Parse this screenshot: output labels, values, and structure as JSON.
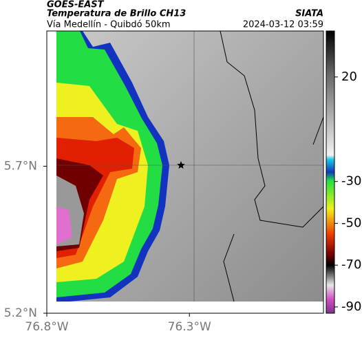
{
  "header": {
    "title": "GOES-EAST",
    "subtitle": "Temperatura de Brillo CH13",
    "location": "Vía Medellín - Quibdó 50km",
    "source": "SIATA",
    "datetime": "2024-03-12 03:59"
  },
  "map": {
    "xlim": [
      -76.8,
      -75.83
    ],
    "ylim": [
      5.2,
      6.16
    ],
    "xticks": [
      {
        "value": -76.8,
        "label": "76.8°W"
      },
      {
        "value": -76.3,
        "label": "76.3°W"
      }
    ],
    "yticks": [
      {
        "value": 5.7,
        "label": "5.7°N"
      },
      {
        "value": 5.2,
        "label": "5.2°N"
      }
    ]
  },
  "colorbar": {
    "lim": [
      42,
      -93
    ],
    "ticks": [
      20,
      -30,
      -50,
      -70,
      -90
    ]
  }
}
